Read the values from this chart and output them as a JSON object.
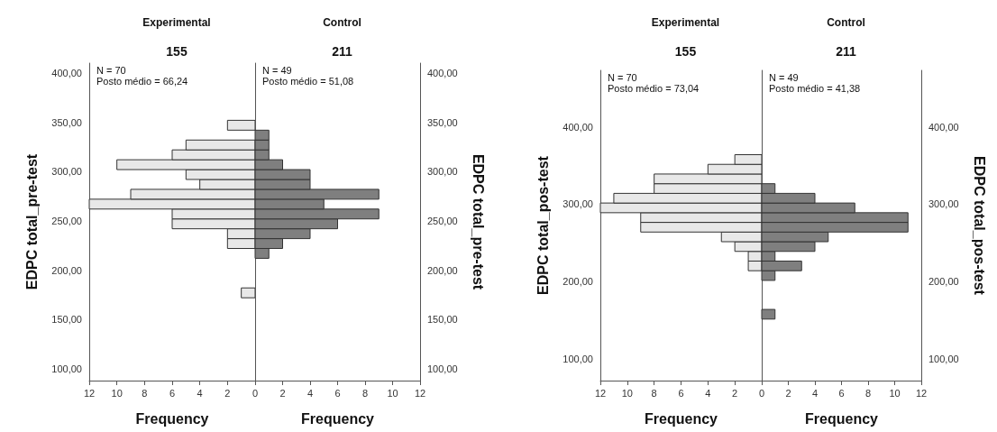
{
  "chart_data": [
    {
      "type": "histogram",
      "orientation": "horizontal",
      "title": "Experimental",
      "subtitle": "155",
      "xlabel": "Frequency",
      "ylabel": "EDPC total_pre-test",
      "color": "#e8e8e8",
      "annotations": [
        "N = 70",
        "Posto médio = 66,24"
      ],
      "xlim": [
        12,
        0
      ],
      "xticks": [
        12,
        10,
        8,
        6,
        4,
        2
      ],
      "ylim": [
        88,
        410
      ],
      "yticks": [
        {
          "value": 100,
          "label": "100,00"
        },
        {
          "value": 150,
          "label": "150,00"
        },
        {
          "value": 200,
          "label": "200,00"
        },
        {
          "value": 250,
          "label": "250,00"
        },
        {
          "value": 300,
          "label": "300,00"
        },
        {
          "value": 350,
          "label": "350,00"
        },
        {
          "value": 400,
          "label": "400,00"
        }
      ],
      "bins": [
        172,
        182,
        192,
        202,
        212,
        222,
        232,
        242,
        252,
        262,
        272,
        282,
        292,
        302,
        312,
        322,
        332,
        342,
        352
      ],
      "values": [
        1,
        0,
        0,
        0,
        0,
        2,
        2,
        6,
        6,
        12,
        9,
        4,
        5,
        10,
        6,
        5,
        0,
        2
      ]
    },
    {
      "type": "histogram",
      "orientation": "horizontal",
      "title": "Control",
      "subtitle": "211",
      "xlabel": "Frequency",
      "ylabel": "EDPC total_pre-test",
      "color": "#7f7f7f",
      "annotations": [
        "N = 49",
        "Posto médio = 51,08"
      ],
      "xlim": [
        0,
        12
      ],
      "xticks": [
        0,
        2,
        4,
        6,
        8,
        10,
        12
      ],
      "ylim": [
        88,
        410
      ],
      "yticks": [
        {
          "value": 100,
          "label": "100,00"
        },
        {
          "value": 150,
          "label": "150,00"
        },
        {
          "value": 200,
          "label": "200,00"
        },
        {
          "value": 250,
          "label": "250,00"
        },
        {
          "value": 300,
          "label": "300,00"
        },
        {
          "value": 350,
          "label": "350,00"
        },
        {
          "value": 400,
          "label": "400,00"
        }
      ],
      "bins": [
        172,
        182,
        192,
        202,
        212,
        222,
        232,
        242,
        252,
        262,
        272,
        282,
        292,
        302,
        312,
        322,
        332,
        342,
        352
      ],
      "values": [
        0,
        0,
        0,
        0,
        1,
        2,
        4,
        6,
        9,
        5,
        9,
        4,
        4,
        2,
        1,
        1,
        1,
        0
      ]
    },
    {
      "type": "histogram",
      "orientation": "horizontal",
      "title": "Experimental",
      "subtitle": "155",
      "xlabel": "Frequency",
      "ylabel": "EDPC total_pos-test",
      "color": "#e8e8e8",
      "annotations": [
        "N = 70",
        "Posto médio = 73,04"
      ],
      "xlim": [
        12,
        0
      ],
      "xticks": [
        12,
        10,
        8,
        6,
        4,
        2
      ],
      "ylim": [
        72,
        473
      ],
      "yticks": [
        {
          "value": 100,
          "label": "100,00"
        },
        {
          "value": 200,
          "label": "200,00"
        },
        {
          "value": 300,
          "label": "300,00"
        },
        {
          "value": 400,
          "label": "400,00"
        }
      ],
      "bins": [
        151.5,
        164,
        176.5,
        189,
        201.5,
        214,
        226.5,
        239,
        251.5,
        264,
        276.5,
        289,
        301.5,
        314,
        326.5,
        339,
        351.5,
        364
      ],
      "values": [
        0,
        0,
        0,
        0,
        0,
        1,
        1,
        2,
        3,
        9,
        9,
        12,
        11,
        8,
        8,
        4,
        2
      ]
    },
    {
      "type": "histogram",
      "orientation": "horizontal",
      "title": "Control",
      "subtitle": "211",
      "xlabel": "Frequency",
      "ylabel": "EDPC total_pos-test",
      "color": "#7f7f7f",
      "annotations": [
        "N = 49",
        "Posto médio = 41,38"
      ],
      "xlim": [
        0,
        12
      ],
      "xticks": [
        0,
        2,
        4,
        6,
        8,
        10,
        12
      ],
      "ylim": [
        72,
        473
      ],
      "yticks": [
        {
          "value": 100,
          "label": "100,00"
        },
        {
          "value": 200,
          "label": "200,00"
        },
        {
          "value": 300,
          "label": "300,00"
        },
        {
          "value": 400,
          "label": "400,00"
        }
      ],
      "bins": [
        151.5,
        164,
        176.5,
        189,
        201.5,
        214,
        226.5,
        239,
        251.5,
        264,
        276.5,
        289,
        301.5,
        314,
        326.5,
        339,
        351.5,
        364
      ],
      "values": [
        1,
        0,
        0,
        0,
        1,
        3,
        1,
        4,
        5,
        11,
        11,
        7,
        4,
        1,
        0,
        0,
        0
      ]
    }
  ]
}
